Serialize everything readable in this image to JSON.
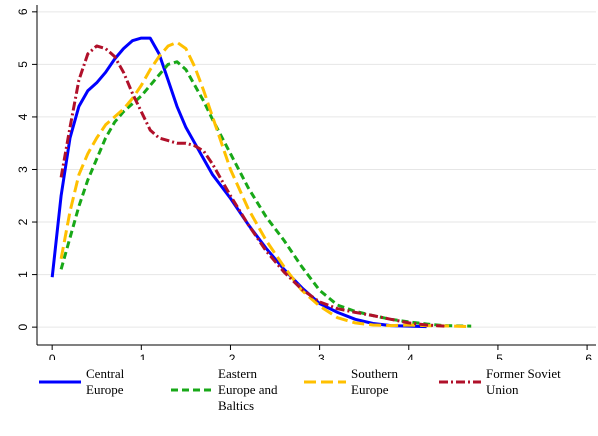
{
  "chart_data": {
    "type": "line",
    "xlim": [
      -0.017,
      0.61
    ],
    "ylim": [
      -0.34,
      6.13
    ],
    "xticks": [
      0,
      {
        "value": 0.1,
        "label": ".1"
      },
      {
        "value": 0.2,
        "label": ".2"
      },
      {
        "value": 0.3,
        "label": ".3"
      },
      {
        "value": 0.4,
        "label": ".4"
      },
      {
        "value": 0.5,
        "label": ".5"
      },
      {
        "value": 0.6,
        "label": ".6"
      }
    ],
    "yticks": [
      0,
      1,
      2,
      3,
      4,
      5,
      6
    ],
    "grid": true,
    "legend": "bottom",
    "series": [
      {
        "name": "Central Europe",
        "color": "#0000ff",
        "dash": "none",
        "x": [
          0,
          0.01,
          0.02,
          0.03,
          0.04,
          0.05,
          0.06,
          0.07,
          0.08,
          0.09,
          0.1,
          0.11,
          0.12,
          0.13,
          0.14,
          0.15,
          0.16,
          0.17,
          0.18,
          0.2,
          0.22,
          0.24,
          0.26,
          0.28,
          0.3,
          0.32,
          0.34,
          0.36,
          0.38,
          0.4,
          0.42
        ],
        "values": [
          0.95,
          2.5,
          3.6,
          4.2,
          4.5,
          4.65,
          4.85,
          5.1,
          5.3,
          5.45,
          5.5,
          5.5,
          5.2,
          4.7,
          4.2,
          3.8,
          3.5,
          3.2,
          2.9,
          2.45,
          1.95,
          1.5,
          1.1,
          0.75,
          0.45,
          0.28,
          0.15,
          0.07,
          0.03,
          0.02,
          0.01
        ]
      },
      {
        "name": "Eastern Europe and Baltics",
        "color": "#18a818",
        "dash": "7,4",
        "x": [
          0.01,
          0.02,
          0.03,
          0.04,
          0.05,
          0.06,
          0.07,
          0.08,
          0.09,
          0.1,
          0.11,
          0.12,
          0.13,
          0.14,
          0.15,
          0.16,
          0.17,
          0.18,
          0.2,
          0.22,
          0.24,
          0.26,
          0.28,
          0.3,
          0.32,
          0.34,
          0.36,
          0.38,
          0.4,
          0.42,
          0.44,
          0.47
        ],
        "values": [
          1.1,
          1.7,
          2.3,
          2.8,
          3.2,
          3.6,
          3.9,
          4.1,
          4.25,
          4.4,
          4.6,
          4.8,
          5.0,
          5.05,
          4.9,
          4.6,
          4.3,
          3.95,
          3.3,
          2.65,
          2.1,
          1.65,
          1.15,
          0.7,
          0.42,
          0.3,
          0.22,
          0.15,
          0.1,
          0.06,
          0.03,
          0.02
        ]
      },
      {
        "name": "Southern Europe",
        "color": "#ffc000",
        "dash": "12,5",
        "x": [
          0.01,
          0.02,
          0.03,
          0.04,
          0.05,
          0.06,
          0.07,
          0.08,
          0.09,
          0.1,
          0.11,
          0.12,
          0.13,
          0.14,
          0.15,
          0.16,
          0.17,
          0.18,
          0.2,
          0.22,
          0.24,
          0.26,
          0.28,
          0.3,
          0.32,
          0.34,
          0.36,
          0.38,
          0.4,
          0.42,
          0.45,
          0.47
        ],
        "values": [
          1.3,
          2.2,
          2.9,
          3.3,
          3.6,
          3.85,
          4.0,
          4.15,
          4.35,
          4.6,
          4.9,
          5.15,
          5.35,
          5.42,
          5.3,
          4.95,
          4.5,
          4.0,
          3.0,
          2.25,
          1.65,
          1.15,
          0.7,
          0.4,
          0.18,
          0.08,
          0.04,
          0.03,
          0.04,
          0.03,
          0.02,
          0.01
        ]
      },
      {
        "name": "Former Soviet Union",
        "color": "#b0102a",
        "dash": "9,3,2,3",
        "x": [
          0.01,
          0.02,
          0.03,
          0.04,
          0.05,
          0.06,
          0.07,
          0.08,
          0.09,
          0.1,
          0.11,
          0.12,
          0.13,
          0.14,
          0.15,
          0.16,
          0.17,
          0.18,
          0.2,
          0.22,
          0.24,
          0.26,
          0.28,
          0.3,
          0.32,
          0.34,
          0.36,
          0.38,
          0.4,
          0.42,
          0.44
        ],
        "values": [
          2.85,
          3.8,
          4.7,
          5.2,
          5.35,
          5.3,
          5.15,
          4.85,
          4.45,
          4.1,
          3.75,
          3.6,
          3.55,
          3.5,
          3.5,
          3.45,
          3.35,
          3.1,
          2.5,
          1.95,
          1.45,
          1.05,
          0.72,
          0.48,
          0.35,
          0.28,
          0.22,
          0.15,
          0.08,
          0.04,
          0.02
        ]
      }
    ]
  }
}
